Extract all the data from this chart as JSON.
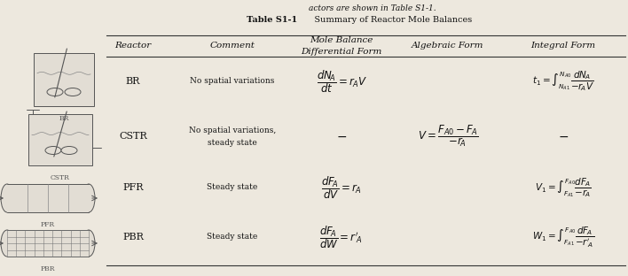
{
  "title_left": "Table S1-1",
  "title_right": "Summary of Reactor Mole Balances",
  "top_text": "actors are shown in Table S1-1.",
  "col_headers_1": [
    "Reactor",
    "Comment",
    "Mole Balance",
    "Algebraic Form",
    "Integral Form"
  ],
  "col_headers_2": [
    "",
    "",
    "Differential Form",
    "",
    ""
  ],
  "reactors": [
    "BR",
    "CSTR",
    "PFR",
    "PBR"
  ],
  "comments": [
    "No spatial variations",
    "No spatial variations,\nsteady state",
    "Steady state",
    "Steady state"
  ],
  "bg_color": "#ede8de",
  "line_color": "#333333",
  "text_color": "#111111",
  "fig_w": 7.08,
  "fig_h": 3.12
}
